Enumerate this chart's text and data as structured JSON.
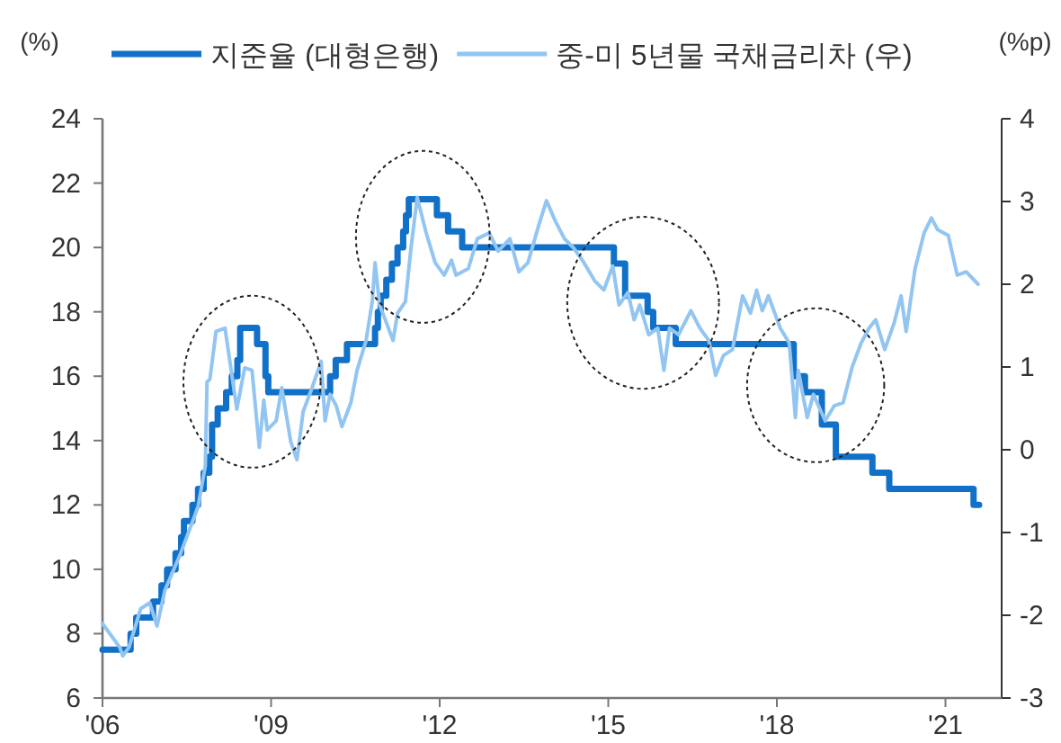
{
  "chart_data": {
    "type": "line",
    "ylabel": "(%)",
    "y2label": "(%p)",
    "legend": "top",
    "grid": false,
    "xlim": [
      2006,
      2022
    ],
    "xticks": [
      {
        "value": 2006,
        "label": "'06"
      },
      {
        "value": 2009,
        "label": "'09"
      },
      {
        "value": 2012,
        "label": "'12"
      },
      {
        "value": 2015,
        "label": "'15"
      },
      {
        "value": 2018,
        "label": "'18"
      },
      {
        "value": 2021,
        "label": "'21"
      }
    ],
    "ylim": [
      6,
      24
    ],
    "yticks": [
      6,
      8,
      10,
      12,
      14,
      16,
      18,
      20,
      22,
      24
    ],
    "y2lim": [
      -3,
      4
    ],
    "y2ticks": [
      -3,
      -2,
      -1,
      0,
      1,
      2,
      3,
      4
    ],
    "series": [
      {
        "name": "지준율 (대형은행)",
        "type": "step",
        "color": "#1170c8",
        "x": [
          2006.0,
          2006.5,
          2006.6,
          2006.9,
          2007.05,
          2007.15,
          2007.3,
          2007.4,
          2007.45,
          2007.6,
          2007.7,
          2007.8,
          2007.9,
          2007.95,
          2008.05,
          2008.2,
          2008.3,
          2008.4,
          2008.45,
          2008.75,
          2008.9,
          2008.95,
          2010.05,
          2010.15,
          2010.35,
          2010.85,
          2010.9,
          2010.95,
          2011.05,
          2011.15,
          2011.25,
          2011.35,
          2011.4,
          2011.45,
          2011.95,
          2012.15,
          2012.4,
          2015.1,
          2015.3,
          2015.7,
          2015.8,
          2016.2,
          2018.3,
          2018.5,
          2018.8,
          2019.05,
          2019.7,
          2020.0,
          2021.5,
          2021.6
        ],
        "values": [
          7.5,
          8.0,
          8.5,
          9.0,
          9.5,
          10,
          10.5,
          11,
          11.5,
          12,
          12.5,
          13,
          13.5,
          14.5,
          15,
          15.5,
          16,
          16.5,
          17.5,
          17,
          16,
          15.5,
          16,
          16.5,
          17,
          17.5,
          18,
          18.5,
          19,
          19.5,
          20,
          20.5,
          21,
          21.5,
          21,
          20.5,
          20,
          19.5,
          18.5,
          18,
          17.5,
          17,
          16,
          15.5,
          14.5,
          13.5,
          13,
          12.5,
          12,
          12
        ]
      },
      {
        "name": "중-미 5년물 국채금리차 (우)",
        "type": "line",
        "axis": "y2",
        "color": "#92c5f2",
        "x": [
          2006.0,
          2006.31,
          2006.36,
          2006.47,
          2006.68,
          2006.84,
          2006.97,
          2007.11,
          2007.38,
          2007.7,
          2007.83,
          2007.86,
          2007.91,
          2008.02,
          2008.18,
          2008.29,
          2008.39,
          2008.53,
          2008.66,
          2008.79,
          2008.87,
          2008.93,
          2009.09,
          2009.19,
          2009.35,
          2009.46,
          2009.57,
          2009.73,
          2009.89,
          2009.96,
          2010.05,
          2010.16,
          2010.26,
          2010.42,
          2010.53,
          2010.69,
          2010.8,
          2010.85,
          2010.93,
          2011.01,
          2011.17,
          2011.25,
          2011.39,
          2011.49,
          2011.6,
          2011.76,
          2011.92,
          2012.08,
          2012.21,
          2012.29,
          2012.51,
          2012.67,
          2012.88,
          2013.04,
          2013.25,
          2013.41,
          2013.57,
          2013.77,
          2013.9,
          2014.06,
          2014.22,
          2014.38,
          2014.54,
          2014.76,
          2014.92,
          2015.08,
          2015.19,
          2015.35,
          2015.46,
          2015.56,
          2015.72,
          2015.88,
          2015.99,
          2016.09,
          2016.25,
          2016.47,
          2016.63,
          2016.79,
          2016.91,
          2017.05,
          2017.21,
          2017.39,
          2017.53,
          2017.64,
          2017.74,
          2017.85,
          2018.06,
          2018.22,
          2018.33,
          2018.38,
          2018.54,
          2018.65,
          2018.86,
          2019.02,
          2019.18,
          2019.34,
          2019.5,
          2019.64,
          2019.76,
          2019.92,
          2020.09,
          2020.21,
          2020.3,
          2020.46,
          2020.62,
          2020.75,
          2020.86,
          2021.05,
          2021.21,
          2021.37,
          2021.58
        ],
        "values": [
          -2.1,
          -2.39,
          -2.49,
          -2.39,
          -1.92,
          -1.85,
          -2.13,
          -1.7,
          -1.27,
          -0.69,
          -0.19,
          0.82,
          0.85,
          1.43,
          1.47,
          0.96,
          0.49,
          0.99,
          0.96,
          0.03,
          0.6,
          0.24,
          0.35,
          0.75,
          0.1,
          -0.12,
          0.46,
          0.75,
          1.07,
          0.35,
          0.67,
          0.53,
          0.28,
          0.57,
          0.96,
          1.32,
          1.79,
          2.26,
          1.75,
          1.61,
          1.32,
          1.65,
          1.79,
          2.44,
          3.05,
          2.62,
          2.26,
          2.11,
          2.29,
          2.11,
          2.19,
          2.55,
          2.62,
          2.4,
          2.55,
          2.15,
          2.26,
          2.73,
          3.01,
          2.76,
          2.55,
          2.44,
          2.29,
          2.04,
          1.93,
          2.22,
          1.75,
          1.9,
          1.57,
          1.75,
          1.39,
          1.47,
          0.96,
          1.47,
          1.39,
          1.68,
          1.47,
          1.32,
          0.9,
          1.14,
          1.21,
          1.86,
          1.65,
          1.93,
          1.68,
          1.86,
          1.47,
          1.29,
          0.39,
          0.96,
          0.39,
          0.67,
          0.35,
          0.53,
          0.57,
          1.0,
          1.29,
          1.47,
          1.57,
          1.21,
          1.54,
          1.86,
          1.43,
          2.19,
          2.62,
          2.8,
          2.66,
          2.59,
          2.11,
          2.15,
          2.0
        ]
      }
    ]
  }
}
